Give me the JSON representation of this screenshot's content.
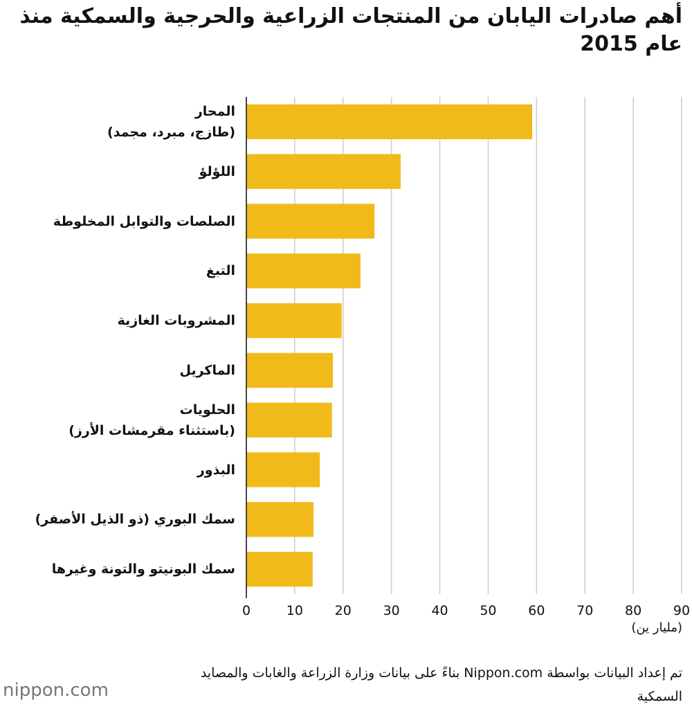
{
  "chart_data": {
    "type": "bar",
    "orientation": "horizontal",
    "title": "أهم صادرات اليابان من المنتجات الزراعية والحرجية والسمكية منذ عام 2015",
    "categories": [
      "المحار\n(طازج، مبرد، مجمد)",
      "اللؤلؤ",
      "الصلصات والتوابل المخلوطة",
      "التبغ",
      "المشروبات الغازية",
      "الماكريل",
      "الحلويات\n(باستثناء مقرمشات الأرز)",
      "البذور",
      "سمك البوري (ذو الذيل الأصفر)",
      "سمك البونيتو والتونة وغيرها"
    ],
    "values": [
      59.1,
      31.9,
      26.5,
      23.6,
      19.7,
      17.9,
      17.7,
      15.2,
      13.9,
      13.7
    ],
    "color": "#f0bb1a",
    "xlim": [
      0,
      90
    ],
    "xticks": [
      0,
      10,
      20,
      30,
      40,
      50,
      60,
      70,
      80,
      90
    ],
    "grid": true,
    "x_label": "(مليار ين)",
    "source": "تم إعداد البيانات بواسطة Nippon.com بناءً على بيانات وزارة الزراعة والغابات والمصايد السمكية",
    "logo": "nippon.com"
  }
}
